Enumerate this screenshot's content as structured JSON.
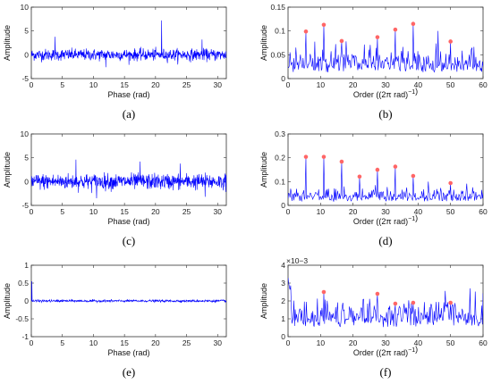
{
  "figure": {
    "line_color": "#0000ff",
    "peak_color": "#ff6666",
    "panels": [
      {
        "id": "a",
        "label": "(a)",
        "xlabel": "Phase (rad)",
        "ylabel": "Amplitude",
        "exponent": ""
      },
      {
        "id": "b",
        "label": "(b)",
        "xlabel": "Order ((2π rad)",
        "xlabel_sup": "−1",
        "xlabel_close": ")",
        "ylabel": "Amplitude",
        "exponent": ""
      },
      {
        "id": "c",
        "label": "(c)",
        "xlabel": "Phase (rad)",
        "ylabel": "Amplitude",
        "exponent": ""
      },
      {
        "id": "d",
        "label": "(d)",
        "xlabel": "Order ((2π rad)",
        "xlabel_sup": "−1",
        "xlabel_close": ")",
        "ylabel": "Amplitude",
        "exponent": ""
      },
      {
        "id": "e",
        "label": "(e)",
        "xlabel": "Phase (rad)",
        "ylabel": "Amplitude",
        "exponent": ""
      },
      {
        "id": "f",
        "label": "(f)",
        "xlabel": "Order ((2π rad)",
        "xlabel_sup": "−1",
        "xlabel_close": ")",
        "ylabel": "Amplitude",
        "exponent": "×10−3"
      }
    ]
  },
  "chart_data": [
    {
      "id": "a",
      "type": "line",
      "xlim": [
        0,
        31.4
      ],
      "ylim": [
        -5,
        10
      ],
      "xticks": [
        0,
        5,
        10,
        15,
        20,
        25,
        30
      ],
      "yticks": [
        -5,
        0,
        5,
        10
      ],
      "signal": {
        "kind": "noise",
        "n": 700,
        "amplitude": 1.1,
        "spikes": [
          [
            21.0,
            7.2
          ],
          [
            3.8,
            3.8
          ],
          [
            27.5,
            3.2
          ],
          [
            12.0,
            -2.6
          ]
        ]
      }
    },
    {
      "id": "b",
      "type": "line",
      "xlim": [
        0,
        60
      ],
      "ylim": [
        0,
        0.15
      ],
      "xticks": [
        0,
        10,
        20,
        30,
        40,
        50,
        60
      ],
      "yticks": [
        0,
        0.05,
        0.1,
        0.15
      ],
      "signal": {
        "kind": "spectrum",
        "n": 300,
        "base": 0.03,
        "spread": 0.03
      },
      "peaks": [
        [
          5.5,
          0.097
        ],
        [
          11,
          0.111
        ],
        [
          16.5,
          0.077
        ],
        [
          27.5,
          0.085
        ],
        [
          33,
          0.101
        ],
        [
          38.5,
          0.113
        ],
        [
          50,
          0.076
        ]
      ]
    },
    {
      "id": "c",
      "type": "line",
      "xlim": [
        0,
        31.4
      ],
      "ylim": [
        -5,
        10
      ],
      "xticks": [
        0,
        5,
        10,
        15,
        20,
        25,
        30
      ],
      "yticks": [
        -5,
        0,
        5,
        10
      ],
      "signal": {
        "kind": "noise",
        "n": 700,
        "amplitude": 1.5,
        "spikes": [
          [
            7.2,
            4.6
          ],
          [
            17.5,
            4.2
          ],
          [
            24.0,
            3.8
          ],
          [
            10.5,
            -3.5
          ],
          [
            28.0,
            -3.2
          ]
        ]
      }
    },
    {
      "id": "d",
      "type": "line",
      "xlim": [
        0,
        60
      ],
      "ylim": [
        0,
        0.3
      ],
      "xticks": [
        0,
        10,
        20,
        30,
        40,
        50,
        60
      ],
      "yticks": [
        0,
        0.1,
        0.2,
        0.3
      ],
      "signal": {
        "kind": "spectrum",
        "n": 300,
        "base": 0.035,
        "spread": 0.035
      },
      "peaks": [
        [
          5.5,
          0.2
        ],
        [
          11,
          0.2
        ],
        [
          16.5,
          0.18
        ],
        [
          22,
          0.117
        ],
        [
          27.5,
          0.146
        ],
        [
          33,
          0.159
        ],
        [
          38.5,
          0.12
        ],
        [
          50,
          0.09
        ]
      ]
    },
    {
      "id": "e",
      "type": "line",
      "xlim": [
        0,
        31.4
      ],
      "ylim": [
        -1,
        1
      ],
      "xticks": [
        0,
        5,
        10,
        15,
        20,
        25,
        30
      ],
      "yticks": [
        -1,
        -0.5,
        0,
        0.5,
        1
      ],
      "signal": {
        "kind": "noise",
        "n": 700,
        "amplitude": 0.03,
        "spikes": [
          [
            0.1,
            0.55
          ]
        ]
      }
    },
    {
      "id": "f",
      "type": "line",
      "xlim": [
        0,
        60
      ],
      "ylim": [
        0,
        4
      ],
      "xticks": [
        0,
        10,
        20,
        30,
        40,
        50,
        60
      ],
      "yticks": [
        0,
        1,
        2,
        3,
        4
      ],
      "signal": {
        "kind": "spectrum",
        "n": 300,
        "base": 1.2,
        "spread": 1.0,
        "start": 3.3
      },
      "peaks": [
        [
          11,
          2.45
        ],
        [
          27.5,
          2.35
        ],
        [
          33,
          1.8
        ],
        [
          38.5,
          1.85
        ],
        [
          50,
          1.85
        ]
      ]
    }
  ]
}
